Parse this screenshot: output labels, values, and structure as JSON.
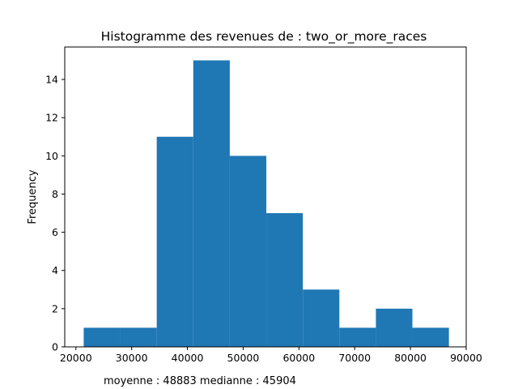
{
  "chart_data": {
    "type": "bar",
    "title": "Histogramme des revenues de : two_or_more_races",
    "xlabel": "",
    "ylabel": "Frequency",
    "xlim": [
      18000,
      90000
    ],
    "ylim": [
      0,
      15.7
    ],
    "x_ticks": [
      20000,
      30000,
      40000,
      50000,
      60000,
      70000,
      80000,
      90000
    ],
    "y_ticks": [
      0,
      2,
      4,
      6,
      8,
      10,
      12,
      14
    ],
    "bin_edges": [
      21400,
      27950,
      34500,
      41050,
      47600,
      54150,
      60700,
      67250,
      73800,
      80350,
      86900
    ],
    "values": [
      1,
      1,
      11,
      15,
      10,
      7,
      3,
      1,
      2,
      1
    ],
    "bar_color": "#1f77b4",
    "grid": false,
    "legend": "none",
    "annotation": "moyenne : 48883  medianne : 45904"
  }
}
